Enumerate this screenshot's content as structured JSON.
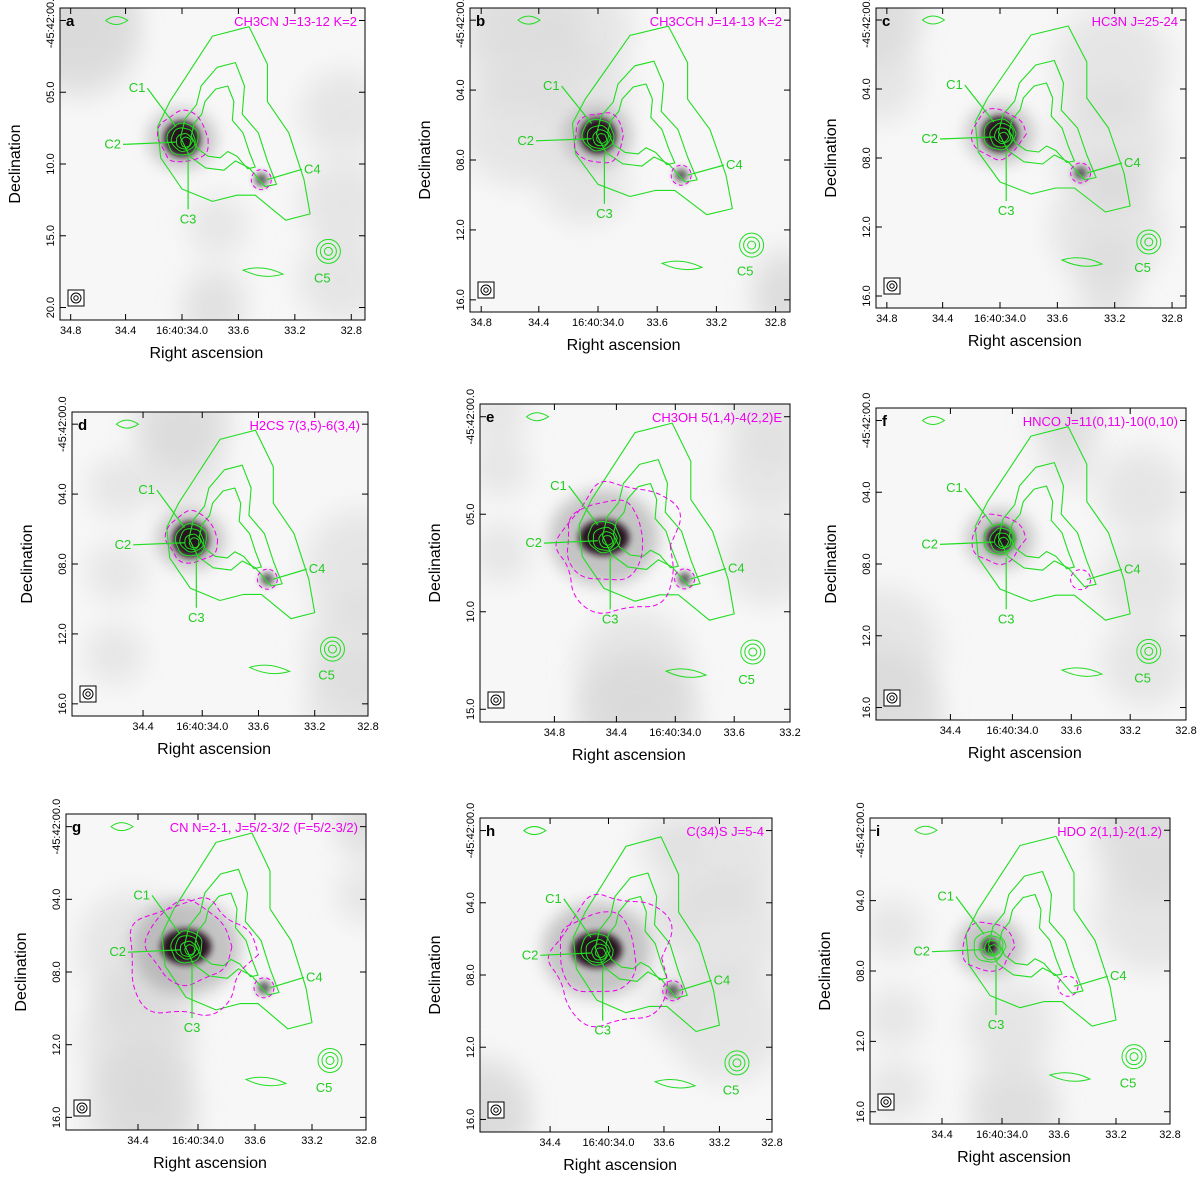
{
  "chart_data": {
    "type": "contour_map_grid",
    "figure": "Multi-panel molecular line emission maps with green continuum contours and magenta dashed contours",
    "common": {
      "xlabel": "Right ascension",
      "ylabel": "Declination",
      "sources": [
        "C1",
        "C2",
        "C3",
        "C4",
        "C5"
      ],
      "colors": {
        "contour": "#22dd22",
        "dashed": "#ee00ee",
        "title": "#ee00ee",
        "text": "#000000"
      }
    },
    "panels": [
      {
        "letter": "a",
        "title": "CH3CN  J=13-12 K=2",
        "xticks": [
          "34.8",
          "34.4",
          "16:40:34.0",
          "33.6",
          "33.2",
          "32.8"
        ],
        "yticks": [
          "-45:42:00.0",
          "05.0",
          "10.0",
          "15.0",
          "20.0"
        ]
      },
      {
        "letter": "b",
        "title": "CH3CCH  J=14-13 K=2",
        "xticks": [
          "34.8",
          "34.4",
          "16:40:34.0",
          "33.6",
          "33.2",
          "32.8"
        ],
        "yticks": [
          "-45:42:00.0",
          "04.0",
          "08.0",
          "12.0",
          "16.0"
        ]
      },
      {
        "letter": "c",
        "title": "HC3N J=25-24",
        "xticks": [
          "34.8",
          "34.4",
          "16:40:34.0",
          "33.6",
          "33.2",
          "32.8"
        ],
        "yticks": [
          "-45:42:00.0",
          "04.0",
          "08.0",
          "12.0",
          "16.0"
        ]
      },
      {
        "letter": "d",
        "title": "H2CS   7(3,5)-6(3,4)",
        "xticks": [
          "34.4",
          "16:40:34.0",
          "33.6",
          "33.2",
          "32.8"
        ],
        "yticks": [
          "-45:42:00.0",
          "04.0",
          "08.0",
          "12.0",
          "16.0"
        ]
      },
      {
        "letter": "e",
        "title": "CH3OH  5(1,4)-4(2,2)E",
        "xticks": [
          "34.8",
          "34.4",
          "16:40:34.0",
          "33.6",
          "33.2"
        ],
        "yticks": [
          "-45:42:00.0",
          "05.0",
          "10.0",
          "15.0"
        ]
      },
      {
        "letter": "f",
        "title": "HNCO  J=11(0,11)-10(0,10)",
        "xticks": [
          "34.4",
          "16:40:34.0",
          "33.6",
          "33.2",
          "32.8"
        ],
        "yticks": [
          "-45:42:00.0",
          "04.0",
          "08.0",
          "12.0",
          "16.0"
        ]
      },
      {
        "letter": "g",
        "title": "CN N=2-1, J=5/2-3/2 (F=5/2-3/2)",
        "xticks": [
          "34.4",
          "16:40:34.0",
          "33.6",
          "33.2",
          "32.8"
        ],
        "yticks": [
          "-45:42:00.0",
          "04.0",
          "08.0",
          "12.0",
          "16.0"
        ]
      },
      {
        "letter": "h",
        "title": "C(34)S  J=5-4",
        "xticks": [
          "34.4",
          "16:40:34.0",
          "33.6",
          "33.2",
          "32.8"
        ],
        "yticks": [
          "-45:42:00.0",
          "04.0",
          "08.0",
          "12.0",
          "16.0"
        ]
      },
      {
        "letter": "i",
        "title": "HDO 2(1,1)-2(1.2)",
        "xticks": [
          "34.4",
          "16:40:34.0",
          "33.6",
          "33.2",
          "32.8"
        ],
        "yticks": [
          "-45:42:00.0",
          "04.0",
          "08.0",
          "12.0",
          "16.0"
        ]
      }
    ]
  }
}
